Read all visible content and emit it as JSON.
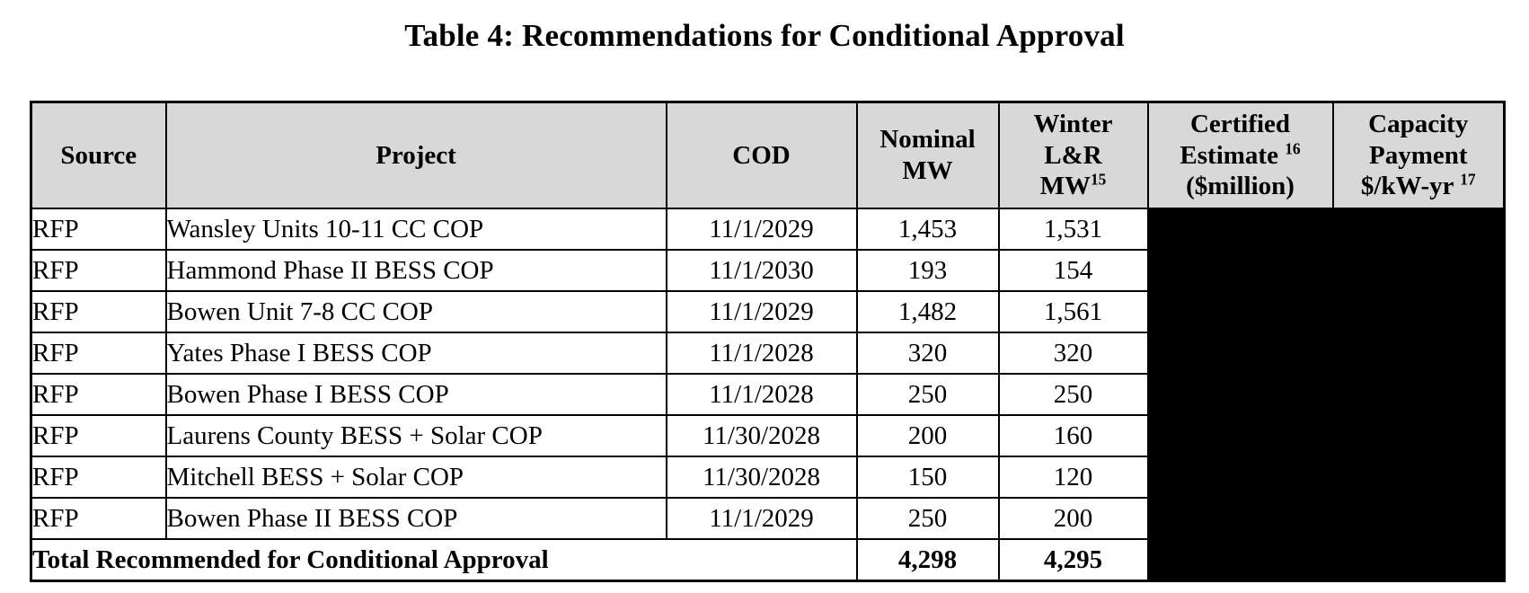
{
  "title": "Table 4: Recommendations for Conditional Approval",
  "colors": {
    "header_bg": "#d8d8d8",
    "total_row_bg": "#d8d8d8",
    "redaction_fill": "#000000",
    "border": "#000000",
    "page_bg": "#ffffff"
  },
  "table": {
    "header": {
      "source": "Source",
      "project": "Project",
      "cod": "COD",
      "nominal": {
        "line1": "Nominal",
        "line2": "MW"
      },
      "winter": {
        "line1": "Winter",
        "line2": "L&R",
        "line3": "MW",
        "footnote": "15"
      },
      "certified": {
        "line1": "Certified",
        "line2": "Estimate",
        "footnote": "16",
        "line3": "($million)"
      },
      "capacity": {
        "line1": "Capacity",
        "line2": "Payment",
        "line3": "$/kW-yr",
        "footnote": "17"
      }
    },
    "redacted_columns": [
      "certified-estimate",
      "capacity-payment"
    ],
    "rows": [
      {
        "source": "RFP",
        "project": "Wansley Units 10-11 CC COP",
        "cod": "11/1/2029",
        "nominal_mw": "1,453",
        "winter_lr_mw": "1,531"
      },
      {
        "source": "RFP",
        "project": "Hammond Phase II BESS COP",
        "cod": "11/1/2030",
        "nominal_mw": "193",
        "winter_lr_mw": "154"
      },
      {
        "source": "RFP",
        "project": "Bowen Unit 7-8 CC COP",
        "cod": "11/1/2029",
        "nominal_mw": "1,482",
        "winter_lr_mw": "1,561"
      },
      {
        "source": "RFP",
        "project": "Yates Phase I BESS COP",
        "cod": "11/1/2028",
        "nominal_mw": "320",
        "winter_lr_mw": "320"
      },
      {
        "source": "RFP",
        "project": "Bowen Phase I BESS COP",
        "cod": "11/1/2028",
        "nominal_mw": "250",
        "winter_lr_mw": "250"
      },
      {
        "source": "RFP",
        "project": "Laurens County BESS + Solar COP",
        "cod": "11/30/2028",
        "nominal_mw": "200",
        "winter_lr_mw": "160"
      },
      {
        "source": "RFP",
        "project": "Mitchell BESS + Solar COP",
        "cod": "11/30/2028",
        "nominal_mw": "150",
        "winter_lr_mw": "120"
      },
      {
        "source": "RFP",
        "project": "Bowen Phase II BESS COP",
        "cod": "11/1/2029",
        "nominal_mw": "250",
        "winter_lr_mw": "200"
      }
    ],
    "total": {
      "label": "Total Recommended for Conditional Approval",
      "nominal_mw": "4,298",
      "winter_lr_mw": "4,295"
    }
  }
}
